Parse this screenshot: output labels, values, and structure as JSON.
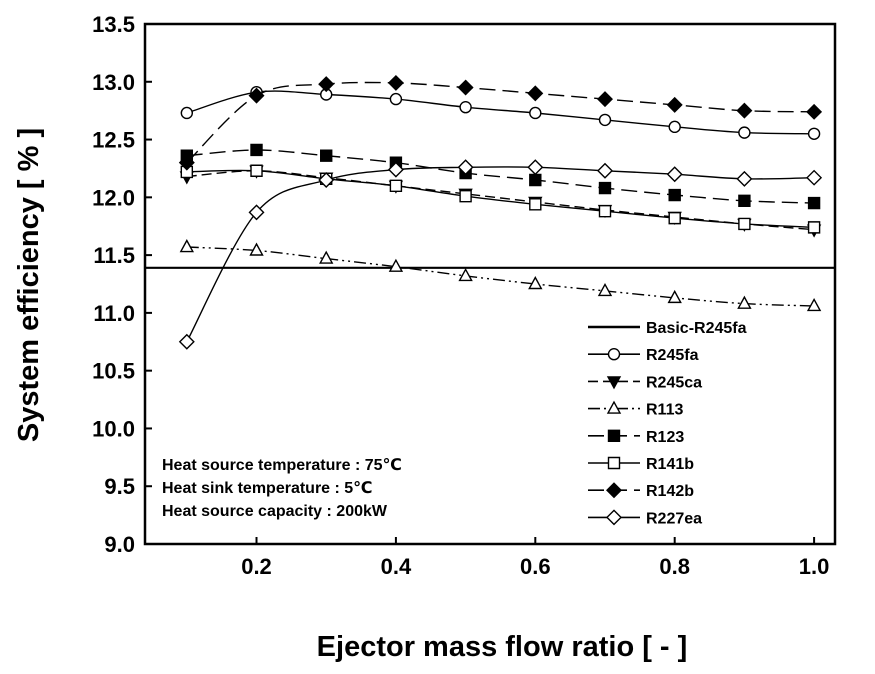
{
  "chart_data": {
    "type": "line",
    "title": "",
    "xlabel": "Ejector mass flow ratio [ - ]",
    "ylabel": "System efficiency [ % ]",
    "xlim": [
      0.04,
      1.03
    ],
    "ylim": [
      9.0,
      13.5
    ],
    "xticks": [
      0.2,
      0.4,
      0.6,
      0.8,
      1.0
    ],
    "xtick_labels": [
      "0.2",
      "0.4",
      "0.6",
      "0.8",
      "1.0"
    ],
    "yticks": [
      9.0,
      9.5,
      10.0,
      10.5,
      11.0,
      11.5,
      12.0,
      12.5,
      13.0,
      13.5
    ],
    "ytick_labels": [
      "9.0",
      "9.5",
      "10.0",
      "10.5",
      "11.0",
      "11.5",
      "12.0",
      "12.5",
      "13.0",
      "13.5"
    ],
    "grid": false,
    "legend_position": "bottom-right",
    "annotations": [
      "Heat source temperature : 75℃",
      "Heat sink temperature : 5℃",
      "Heat source capacity : 200kW"
    ],
    "baseline": {
      "name": "Basic-R245fa",
      "value": 11.39
    },
    "series": [
      {
        "name": "R245fa",
        "marker": "circle-open",
        "dash": "solid",
        "x": [
          0.1,
          0.2,
          0.3,
          0.4,
          0.5,
          0.6,
          0.7,
          0.8,
          0.9,
          1.0
        ],
        "y": [
          12.73,
          12.91,
          12.89,
          12.85,
          12.78,
          12.73,
          12.67,
          12.61,
          12.56,
          12.55
        ]
      },
      {
        "name": "R245ca",
        "marker": "triangle-down-filled",
        "dash": "dash",
        "x": [
          0.1,
          0.2,
          0.3,
          0.4,
          0.5,
          0.6,
          0.7,
          0.8,
          0.9,
          1.0
        ],
        "y": [
          12.18,
          12.23,
          12.17,
          12.1,
          12.03,
          11.96,
          11.89,
          11.83,
          11.77,
          11.72
        ]
      },
      {
        "name": "R113",
        "marker": "triangle-up-open",
        "dash": "dashdotdot",
        "x": [
          0.1,
          0.2,
          0.3,
          0.4,
          0.5,
          0.6,
          0.7,
          0.8,
          0.9,
          1.0
        ],
        "y": [
          11.57,
          11.54,
          11.47,
          11.4,
          11.32,
          11.25,
          11.19,
          11.13,
          11.08,
          11.06
        ]
      },
      {
        "name": "R123",
        "marker": "square-filled",
        "dash": "longdash",
        "x": [
          0.1,
          0.2,
          0.3,
          0.4,
          0.5,
          0.6,
          0.7,
          0.8,
          0.9,
          1.0
        ],
        "y": [
          12.36,
          12.41,
          12.36,
          12.3,
          12.21,
          12.15,
          12.08,
          12.02,
          11.97,
          11.95
        ]
      },
      {
        "name": "R141b",
        "marker": "square-open",
        "dash": "solid",
        "x": [
          0.1,
          0.2,
          0.3,
          0.4,
          0.5,
          0.6,
          0.7,
          0.8,
          0.9,
          1.0
        ],
        "y": [
          12.22,
          12.23,
          12.16,
          12.1,
          12.01,
          11.94,
          11.88,
          11.82,
          11.77,
          11.74
        ]
      },
      {
        "name": "R142b",
        "marker": "diamond-filled",
        "dash": "longdash",
        "x": [
          0.1,
          0.2,
          0.3,
          0.4,
          0.5,
          0.6,
          0.7,
          0.8,
          0.9,
          1.0
        ],
        "y": [
          12.3,
          12.88,
          12.98,
          12.99,
          12.95,
          12.9,
          12.85,
          12.8,
          12.75,
          12.74
        ]
      },
      {
        "name": "R227ea",
        "marker": "diamond-open",
        "dash": "solid",
        "x": [
          0.1,
          0.2,
          0.3,
          0.4,
          0.5,
          0.6,
          0.7,
          0.8,
          0.9,
          1.0
        ],
        "y": [
          10.75,
          11.87,
          12.15,
          12.24,
          12.26,
          12.26,
          12.23,
          12.2,
          12.16,
          12.17
        ]
      }
    ]
  }
}
